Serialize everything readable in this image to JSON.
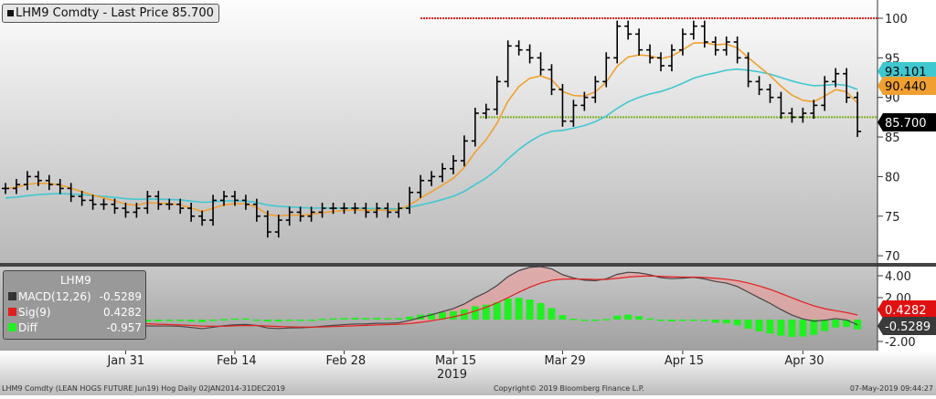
{
  "legend": {
    "title": "LHM9 Comdty - Last Price 85.700"
  },
  "macd_legend": {
    "title": "LHM9",
    "macd_label": "MACD(12,26)",
    "macd_value": "-0.5289",
    "sig_label": "Sig(9)",
    "sig_value": "0.4282",
    "diff_label": "Diff",
    "diff_value": "-0.957"
  },
  "price_tags": {
    "ma_long": "93.101",
    "ma_short": "90.440",
    "last": "85.700"
  },
  "macd_tags": {
    "sig": "0.4282",
    "macd": "-0.5289"
  },
  "footer": {
    "left": "LHM9 Comdty (LEAN HOGS FUTURE  Jun19) Hog  Daily 02JAN2014-31DEC2019",
    "center": "Copyright© 2019 Bloomberg Finance L.P.",
    "right": "07-May-2019 09:44:27"
  },
  "colors": {
    "short_ma": "#f0a030",
    "long_ma": "#40c8d0",
    "resistance": "#e02020",
    "support": "#80b020",
    "sig": "#e02020",
    "diff": "#20f020",
    "macd": "#444444"
  },
  "chart_data": {
    "type": "bar",
    "series_type": "ohlc-bars",
    "closes": [
      78.5,
      79,
      80,
      79.5,
      79,
      78.5,
      77.5,
      77,
      76.5,
      76.5,
      76,
      75.5,
      76,
      77.5,
      76.5,
      76.5,
      76,
      75,
      74.5,
      77,
      77.5,
      77,
      76.5,
      75,
      73,
      74.5,
      75.5,
      75,
      75.5,
      76,
      76,
      76,
      76,
      75.5,
      76,
      75.5,
      76,
      78,
      79.5,
      80,
      81,
      82,
      84.5,
      88,
      88.5,
      92,
      96.5,
      96,
      95,
      93.5,
      91,
      87,
      89,
      90,
      92,
      95,
      99,
      98,
      96,
      95,
      94,
      96,
      98,
      99,
      97,
      96,
      97,
      95,
      92,
      91,
      90,
      88,
      87.5,
      88,
      89,
      92,
      93,
      90,
      85.7
    ],
    "x_ticks": [
      {
        "label": "Jan 31",
        "index": 11
      },
      {
        "label": "Feb 14",
        "index": 21
      },
      {
        "label": "Feb 28",
        "index": 31
      },
      {
        "label": "Mar 15",
        "index": 41
      },
      {
        "label": "Mar 29",
        "index": 51
      },
      {
        "label": "Apr 15",
        "index": 62
      },
      {
        "label": "Apr 30",
        "index": 73
      }
    ],
    "x_year": "2019",
    "ylim": [
      68,
      102
    ],
    "y_ticks": [
      "70",
      "75",
      "80",
      "85",
      "90",
      "95",
      "100"
    ],
    "resistance": 100,
    "support": 87.5,
    "macd_ylim": [
      -3,
      6
    ],
    "macd_ticks": [
      "4.00",
      "2.00",
      "-2.00"
    ]
  }
}
